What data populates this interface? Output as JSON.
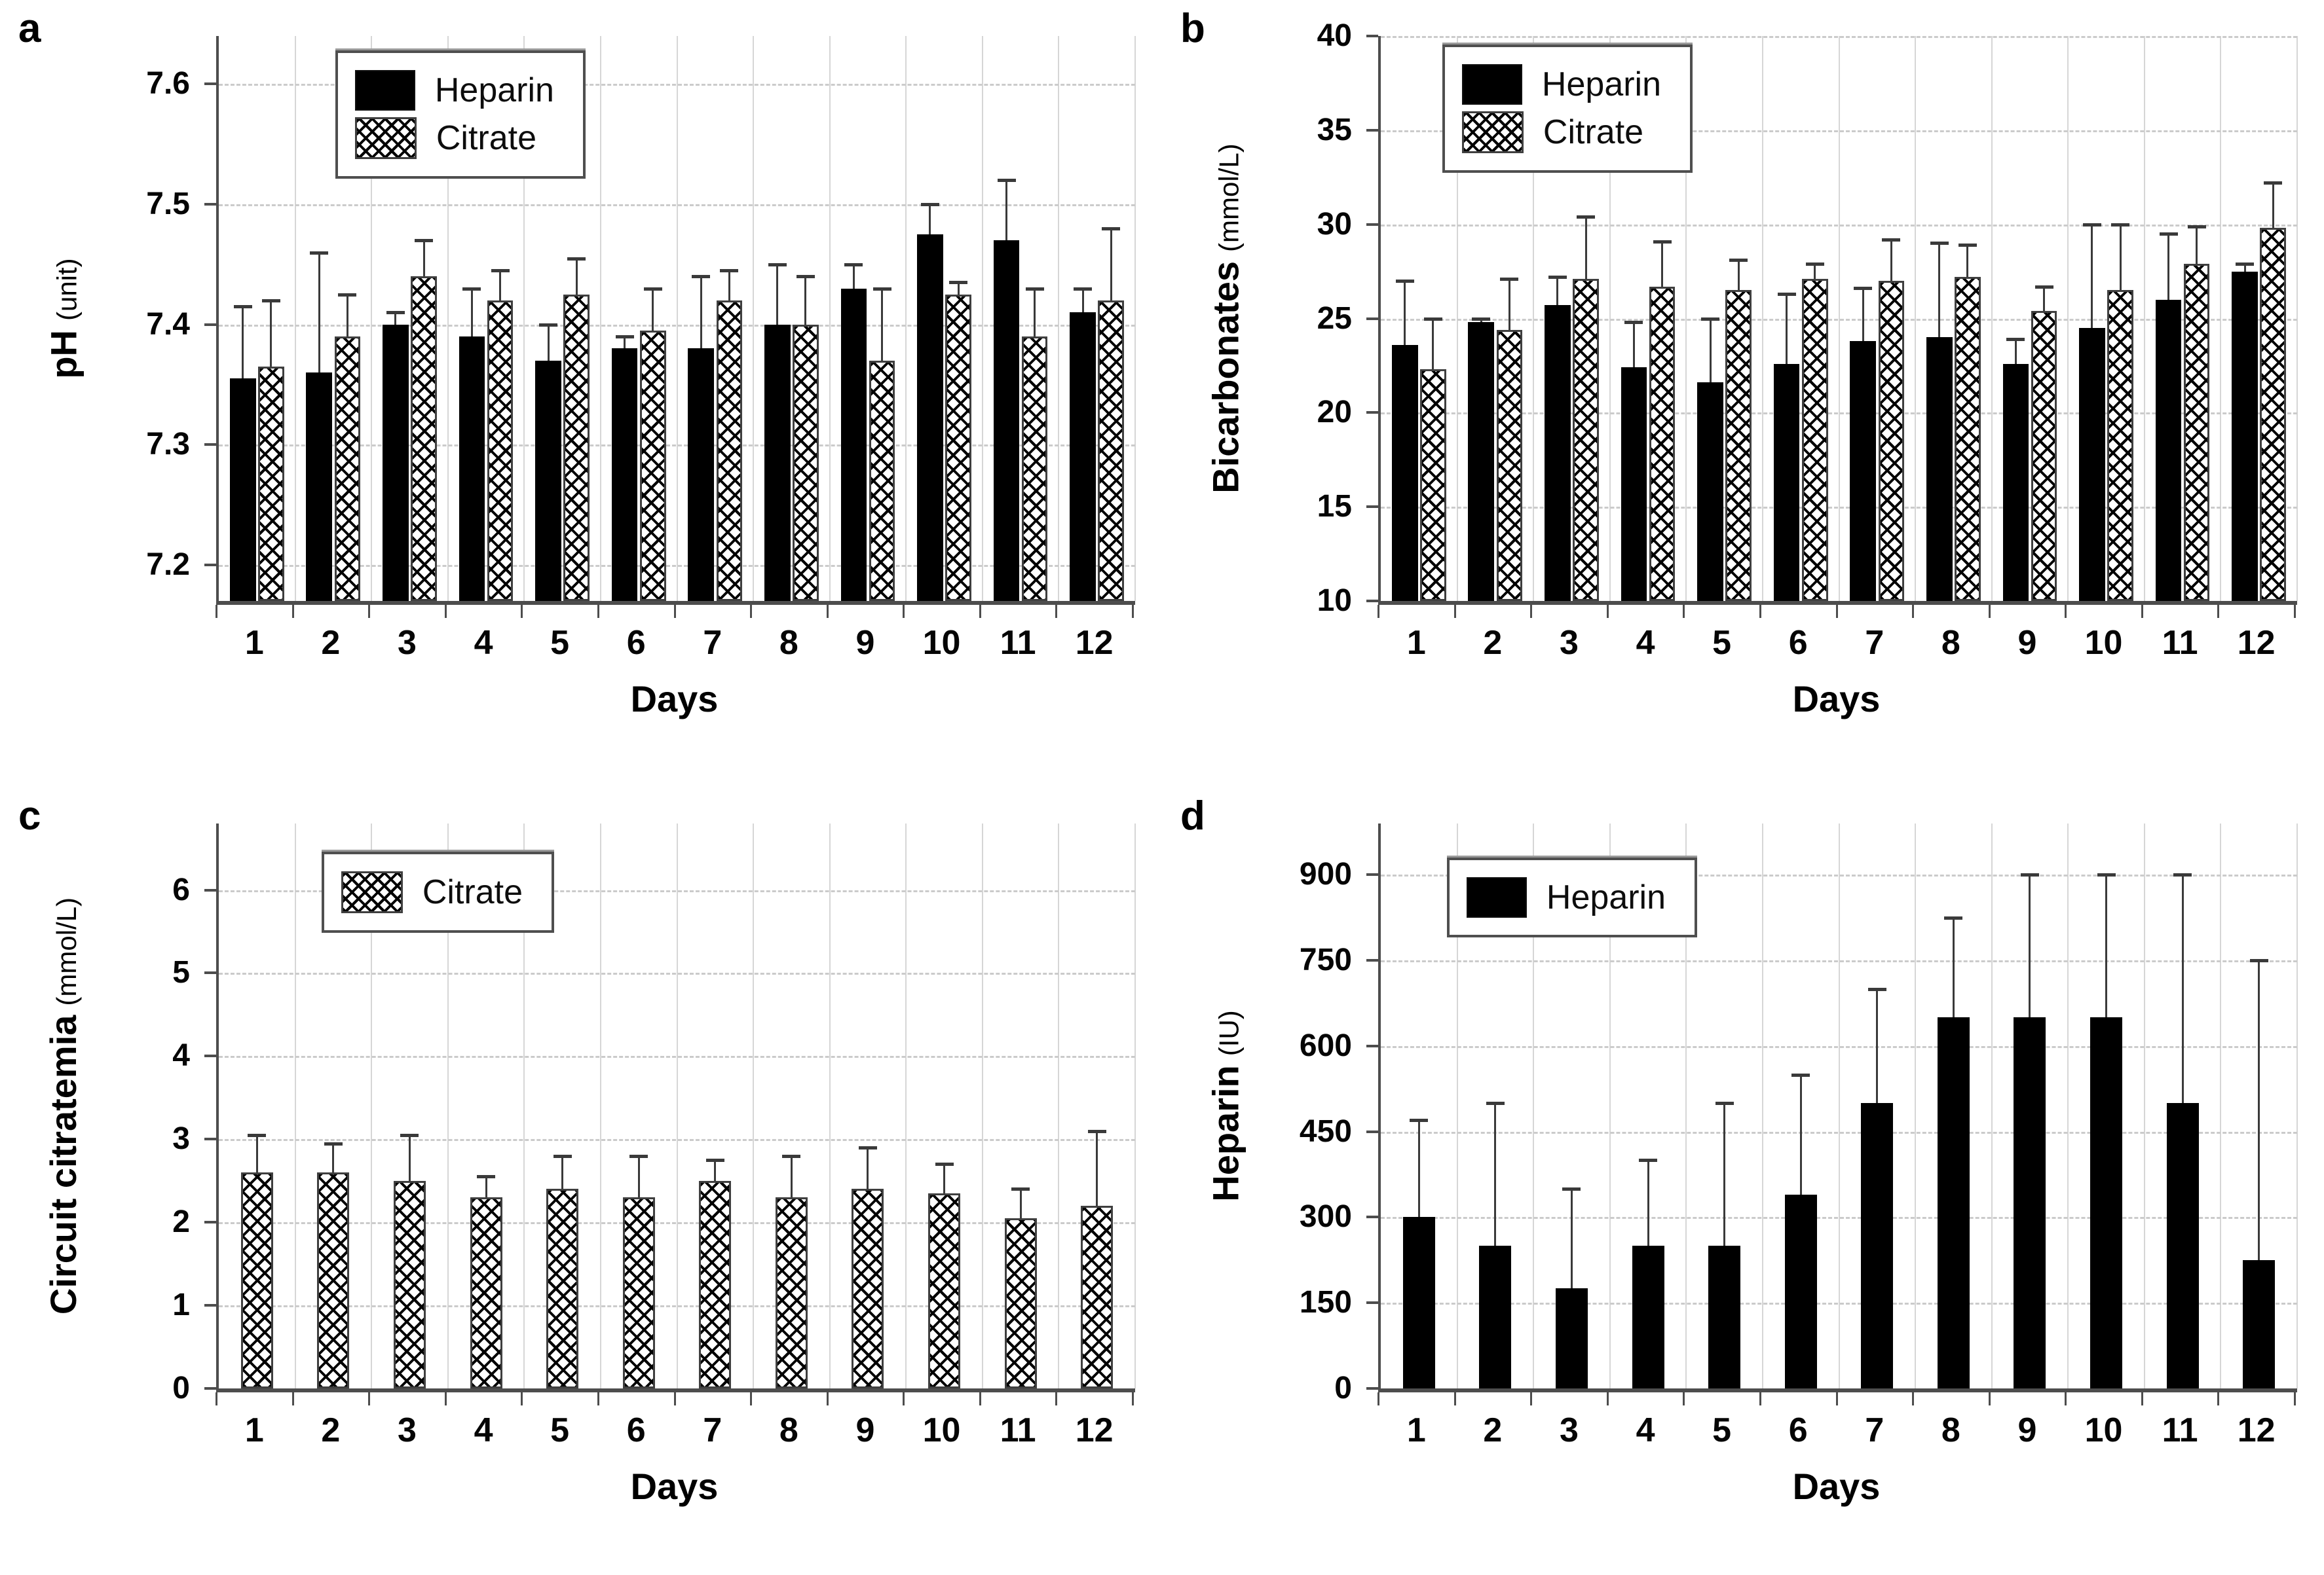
{
  "colors": {
    "background": "#ffffff",
    "bar_solid": "#000000",
    "hatch_line": "#000000",
    "grid": "#cccccc",
    "axis": "#4d4d4d",
    "error_bar": "#3a3a3a",
    "text": "#000000"
  },
  "chart_data": [
    {
      "panel_letter": "a",
      "type": "bar",
      "title": "",
      "xlabel": "Days",
      "ylabel": "pH",
      "ylabel_unit": "(unit)",
      "categories": [
        "1",
        "2",
        "3",
        "4",
        "5",
        "6",
        "7",
        "8",
        "9",
        "10",
        "11",
        "12"
      ],
      "ylim": [
        7.17,
        7.64
      ],
      "yticks": [
        7.2,
        7.3,
        7.4,
        7.5,
        7.6
      ],
      "ytick_labels": [
        "7.2",
        "7.3",
        "7.4",
        "7.5",
        "7.6"
      ],
      "grid": true,
      "legend": {
        "show": true,
        "position": "top-left-inside",
        "x": 0.13,
        "y": 0.025
      },
      "series": [
        {
          "name": "Heparin",
          "pattern": "solid",
          "values": [
            7.355,
            7.36,
            7.4,
            7.39,
            7.37,
            7.38,
            7.38,
            7.4,
            7.43,
            7.475,
            7.47,
            7.41
          ],
          "err_top": [
            7.415,
            7.46,
            7.41,
            7.43,
            7.4,
            7.39,
            7.44,
            7.45,
            7.45,
            7.5,
            7.52,
            7.43
          ]
        },
        {
          "name": "Citrate",
          "pattern": "crosshatch",
          "values": [
            7.365,
            7.39,
            7.44,
            7.42,
            7.425,
            7.395,
            7.42,
            7.4,
            7.37,
            7.425,
            7.39,
            7.42
          ],
          "err_top": [
            7.42,
            7.425,
            7.47,
            7.445,
            7.455,
            7.43,
            7.445,
            7.44,
            7.43,
            7.435,
            7.43,
            7.48
          ]
        }
      ]
    },
    {
      "panel_letter": "b",
      "type": "bar",
      "title": "",
      "xlabel": "Days",
      "ylabel": "Bicarbonates",
      "ylabel_unit": "(mmol/L)",
      "categories": [
        "1",
        "2",
        "3",
        "4",
        "5",
        "6",
        "7",
        "8",
        "9",
        "10",
        "11",
        "12"
      ],
      "ylim": [
        10,
        40
      ],
      "yticks": [
        10,
        15,
        20,
        25,
        30,
        35,
        40
      ],
      "ytick_labels": [
        "10",
        "15",
        "20",
        "25",
        "30",
        "35",
        "40"
      ],
      "grid": true,
      "legend": {
        "show": true,
        "position": "top-left-inside",
        "x": 0.07,
        "y": 0.015
      },
      "series": [
        {
          "name": "Heparin",
          "pattern": "solid",
          "values": [
            23.6,
            24.8,
            25.7,
            22.4,
            21.6,
            22.6,
            23.8,
            24.0,
            22.6,
            24.5,
            26.0,
            27.5
          ],
          "err_top": [
            27.0,
            25.0,
            27.2,
            24.8,
            25.0,
            26.3,
            26.6,
            29.0,
            23.9,
            30.0,
            29.5,
            27.9
          ]
        },
        {
          "name": "Citrate",
          "pattern": "crosshatch",
          "values": [
            22.3,
            24.4,
            27.1,
            26.7,
            26.5,
            27.1,
            27.0,
            27.2,
            25.4,
            26.5,
            27.9,
            29.8
          ],
          "err_top": [
            25.0,
            27.1,
            30.4,
            29.1,
            28.1,
            27.9,
            29.2,
            28.9,
            26.7,
            30.0,
            29.9,
            32.2
          ]
        }
      ]
    },
    {
      "panel_letter": "c",
      "type": "bar",
      "title": "",
      "xlabel": "Days",
      "ylabel": "Circuit citratemia",
      "ylabel_unit": "(mmol/L)",
      "categories": [
        "1",
        "2",
        "3",
        "4",
        "5",
        "6",
        "7",
        "8",
        "9",
        "10",
        "11",
        "12"
      ],
      "ylim": [
        0,
        6.8
      ],
      "yticks": [
        0,
        1,
        2,
        3,
        4,
        5,
        6
      ],
      "ytick_labels": [
        "0",
        "1",
        "2",
        "3",
        "4",
        "5",
        "6"
      ],
      "grid": true,
      "legend": {
        "show": true,
        "position": "top-left-inside",
        "x": 0.115,
        "y": 0.05
      },
      "series": [
        {
          "name": "Citrate",
          "pattern": "crosshatch",
          "values": [
            2.6,
            2.6,
            2.5,
            2.3,
            2.4,
            2.3,
            2.5,
            2.3,
            2.4,
            2.35,
            2.05,
            2.2
          ],
          "err_top": [
            3.05,
            2.95,
            3.05,
            2.55,
            2.8,
            2.8,
            2.75,
            2.8,
            2.9,
            2.7,
            2.4,
            3.1
          ]
        }
      ]
    },
    {
      "panel_letter": "d",
      "type": "bar",
      "title": "",
      "xlabel": "Days",
      "ylabel": "Heparin",
      "ylabel_unit": "(IU)",
      "categories": [
        "1",
        "2",
        "3",
        "4",
        "5",
        "6",
        "7",
        "8",
        "9",
        "10",
        "11",
        "12"
      ],
      "ylim": [
        0,
        990
      ],
      "yticks": [
        0,
        150,
        300,
        450,
        600,
        750,
        900
      ],
      "ytick_labels": [
        "0",
        "150",
        "300",
        "450",
        "600",
        "750",
        "900"
      ],
      "grid": true,
      "legend": {
        "show": true,
        "position": "top-left-inside",
        "x": 0.075,
        "y": 0.06
      },
      "series": [
        {
          "name": "Heparin",
          "pattern": "solid",
          "values": [
            300,
            250,
            175,
            250,
            250,
            340,
            500,
            650,
            650,
            650,
            500,
            225
          ],
          "err_top": [
            470,
            500,
            350,
            400,
            500,
            550,
            700,
            825,
            900,
            900,
            900,
            750
          ]
        }
      ]
    }
  ]
}
